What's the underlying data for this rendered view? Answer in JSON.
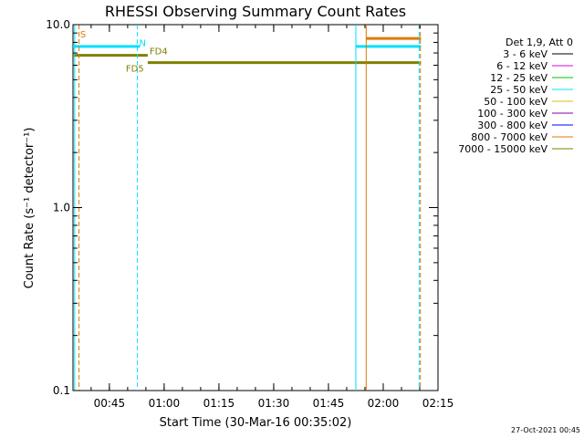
{
  "chart_data": {
    "type": "line",
    "title": "RHESSI Observing Summary Count Rates",
    "xlabel": "Start Time (30-Mar-16 00:35:02)",
    "ylabel": "Count Rate (s⁻¹ detector⁻¹)",
    "yscale": "log",
    "ylim": [
      0.1,
      10.0
    ],
    "xlim": [
      "00:35:02",
      "02:15:00"
    ],
    "x_ticks": [
      "00:45",
      "01:00",
      "01:15",
      "01:30",
      "01:45",
      "02:00",
      "02:15"
    ],
    "y_ticks": [
      "0.1",
      "1.0",
      "10.0"
    ],
    "legend": {
      "header": "Det 1,9, Att 0",
      "placement": "right",
      "entries": [
        {
          "label": "3 - 6 keV",
          "color": "#000000"
        },
        {
          "label": "6 - 12 keV",
          "color": "#e000e0"
        },
        {
          "label": "12 - 25 keV",
          "color": "#00c000"
        },
        {
          "label": "25 - 50 keV",
          "color": "#00e0ff"
        },
        {
          "label": "50 - 100 keV",
          "color": "#e0c000"
        },
        {
          "label": "100 - 300 keV",
          "color": "#8000a0"
        },
        {
          "label": "300 - 800 keV",
          "color": "#0000ff"
        },
        {
          "label": "800 - 7000 keV",
          "color": "#e07800"
        },
        {
          "label": "7000 - 15000 keV",
          "color": "#808000"
        }
      ]
    },
    "series": [
      {
        "band": "25 - 50 keV",
        "color": "#00e0ff",
        "x": [
          "00:35:02",
          "00:53:20"
        ],
        "y": [
          7.6,
          7.6
        ]
      },
      {
        "band": "25 - 50 keV",
        "color": "#00e0ff",
        "x": [
          "01:52:30",
          "02:10:20"
        ],
        "y": [
          7.6,
          7.6
        ]
      },
      {
        "band": "7000 - 15000 keV",
        "color": "#808000",
        "x": [
          "00:35:02",
          "00:55:30"
        ],
        "y": [
          6.8,
          6.8
        ]
      },
      {
        "band": "7000 - 15000 keV",
        "color": "#808000",
        "x": [
          "00:55:30",
          "02:10:20"
        ],
        "y": [
          6.2,
          6.2
        ]
      },
      {
        "band": "800 - 7000 keV",
        "color": "#e07800",
        "x": [
          "01:55:20",
          "02:10:20"
        ],
        "y": [
          8.4,
          8.4
        ]
      }
    ],
    "vertical_lines": [
      {
        "time": "00:35:30",
        "color": "#00e0ff",
        "style": "solid"
      },
      {
        "time": "00:36:40",
        "color": "#e07800",
        "style": "dashed"
      },
      {
        "time": "00:52:40",
        "color": "#00e0ff",
        "style": "dashed"
      },
      {
        "time": "01:52:30",
        "color": "#00e0ff",
        "style": "solid"
      },
      {
        "time": "01:55:20",
        "color": "#e07800",
        "style": "solid"
      },
      {
        "time": "02:09:50",
        "color": "#00e0ff",
        "style": "dashed"
      },
      {
        "time": "02:10:10",
        "color": "#e07800",
        "style": "dashed"
      }
    ],
    "annotations": [
      {
        "text": "S",
        "color": "#e07800",
        "time": "00:37:00",
        "y": 8.9
      },
      {
        "text": "N",
        "color": "#00e0ff",
        "time": "00:53:10",
        "y": 8.0
      },
      {
        "text": "FD4",
        "color": "#808000",
        "time": "00:56:00",
        "y": 7.2
      },
      {
        "text": "FD5",
        "color": "#808000",
        "time": "00:49:30",
        "y": 5.8
      }
    ]
  },
  "timestamp": "27-Oct-2021 00:45"
}
